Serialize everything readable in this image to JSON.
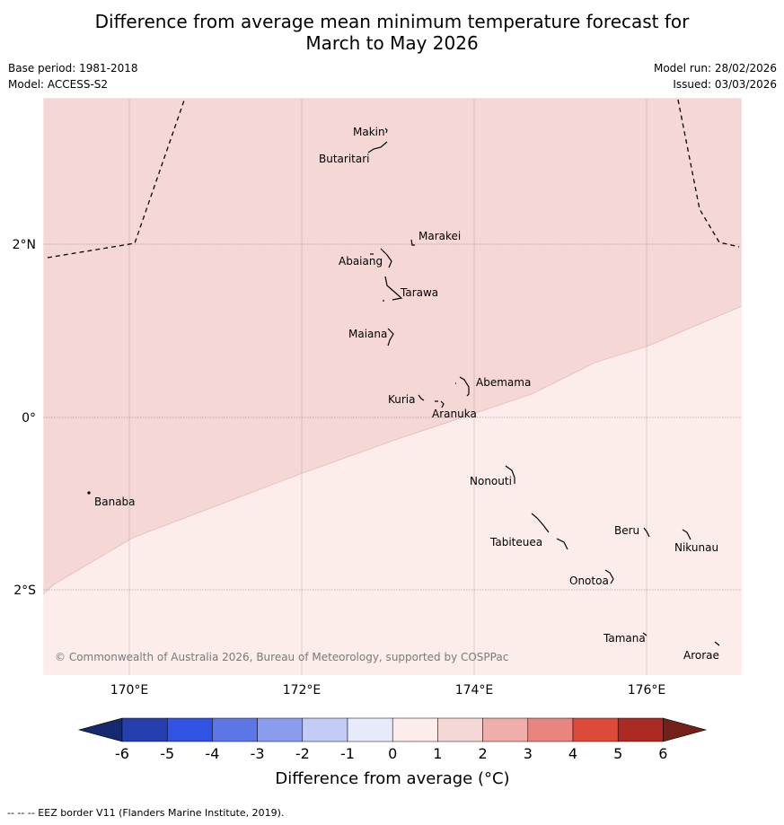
{
  "title_line1": "Difference from average mean minimum temperature forecast for",
  "title_line2": "March to May 2026",
  "base_period": "Base period: 1981-2018",
  "model": "Model: ACCESS-S2",
  "model_run": "Model run: 28/02/2026",
  "issued": "Issued: 03/03/2026",
  "copyright": "© Commonwealth of Australia 2026, Bureau of Meteorology, supported by COSPPac",
  "lon_labels": [
    "170°E",
    "172°E",
    "174°E",
    "176°E"
  ],
  "lat_labels": [
    "2°N",
    "0°",
    "2°S"
  ],
  "islands": [
    "Makin",
    "Butaritari",
    "Marakei",
    "Abaiang",
    "Tarawa",
    "Maiana",
    "Abemama",
    "Kuria",
    "Aranuka",
    "Nonouti",
    "Banaba",
    "Tabiteuea",
    "Beru",
    "Nikunau",
    "Onotoa",
    "Tamana",
    "Arorae"
  ],
  "map_fill": {
    "zone_1_to_2": "#f5d7d5",
    "zone_0_to_1": "#fcecea"
  },
  "colorbar": {
    "label": "Difference from average (°C)",
    "ticks": [
      "-6",
      "-5",
      "-4",
      "-3",
      "-2",
      "-1",
      "0",
      "1",
      "2",
      "3",
      "4",
      "5",
      "6"
    ],
    "colors": [
      "#253fae",
      "#3152e2",
      "#5c76e6",
      "#8a9cee",
      "#c3cbf6",
      "#e7ebfb",
      "#fcecea",
      "#f5d7d5",
      "#efaeaa",
      "#e8857e",
      "#dc4a3c",
      "#ab2a22"
    ],
    "under_color": "#16286f",
    "over_color": "#732016"
  },
  "footnote": "--  --  -- EEZ border V11 (Flanders Marine Institute, 2019)."
}
